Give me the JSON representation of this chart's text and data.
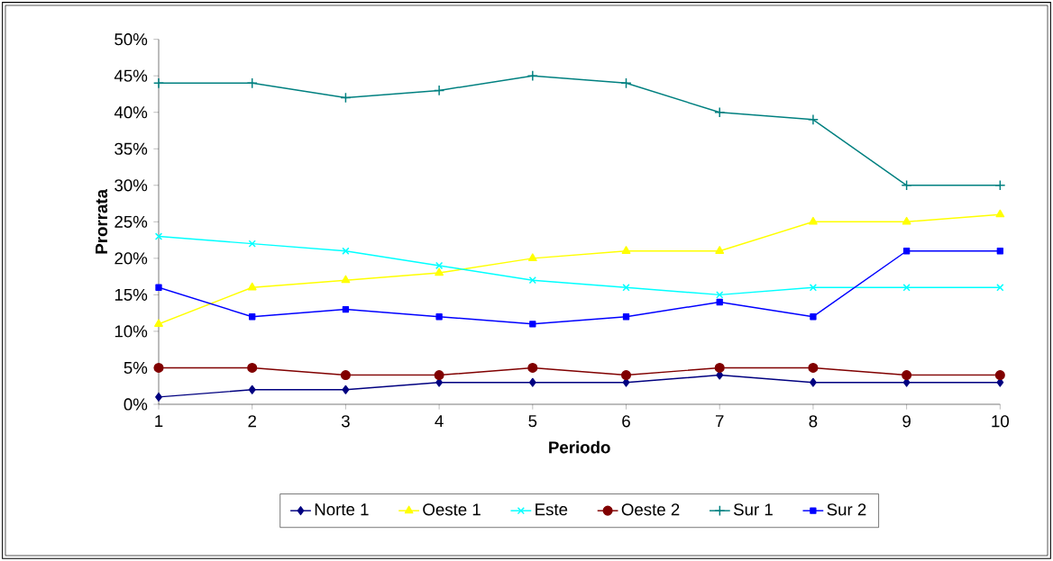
{
  "chart_data": {
    "type": "line",
    "xlabel": "Periodo",
    "ylabel": "Prorrata",
    "x": [
      1,
      2,
      3,
      4,
      5,
      6,
      7,
      8,
      9,
      10
    ],
    "xlim": [
      1,
      10
    ],
    "xticks": [
      1,
      2,
      3,
      4,
      5,
      6,
      7,
      8,
      9,
      10
    ],
    "ylim": [
      0,
      50
    ],
    "yticks": [
      {
        "value": 0,
        "label": "0%"
      },
      {
        "value": 5,
        "label": "5%"
      },
      {
        "value": 10,
        "label": "10%"
      },
      {
        "value": 15,
        "label": "15%"
      },
      {
        "value": 20,
        "label": "20%"
      },
      {
        "value": 25,
        "label": "25%"
      },
      {
        "value": 30,
        "label": "30%"
      },
      {
        "value": 35,
        "label": "35%"
      },
      {
        "value": 40,
        "label": "40%"
      },
      {
        "value": 45,
        "label": "45%"
      },
      {
        "value": 50,
        "label": "50%"
      }
    ],
    "legend": "bottom",
    "grid": false,
    "series": [
      {
        "name": "Norte 1",
        "color": "#000080",
        "marker": "diamond",
        "values": [
          1,
          2,
          2,
          3,
          3,
          3,
          4,
          3,
          3,
          3
        ]
      },
      {
        "name": "Oeste 1",
        "color": "#ffff00",
        "marker": "triangle",
        "values": [
          11,
          16,
          17,
          18,
          20,
          21,
          21,
          25,
          25,
          26
        ]
      },
      {
        "name": "Este",
        "color": "#00ffff",
        "marker": "cross",
        "values": [
          23,
          22,
          21,
          19,
          17,
          16,
          15,
          16,
          16,
          16
        ]
      },
      {
        "name": "Oeste 2",
        "color": "#800000",
        "marker": "circle",
        "values": [
          5,
          5,
          4,
          4,
          5,
          4,
          5,
          5,
          4,
          4
        ]
      },
      {
        "name": "Sur 1",
        "color": "#008080",
        "marker": "plus",
        "values": [
          44,
          44,
          42,
          43,
          45,
          44,
          40,
          39,
          30,
          30
        ]
      },
      {
        "name": "Sur 2",
        "color": "#0000ff",
        "marker": "square",
        "values": [
          16,
          12,
          13,
          12,
          11,
          12,
          14,
          12,
          21,
          21
        ]
      }
    ]
  }
}
